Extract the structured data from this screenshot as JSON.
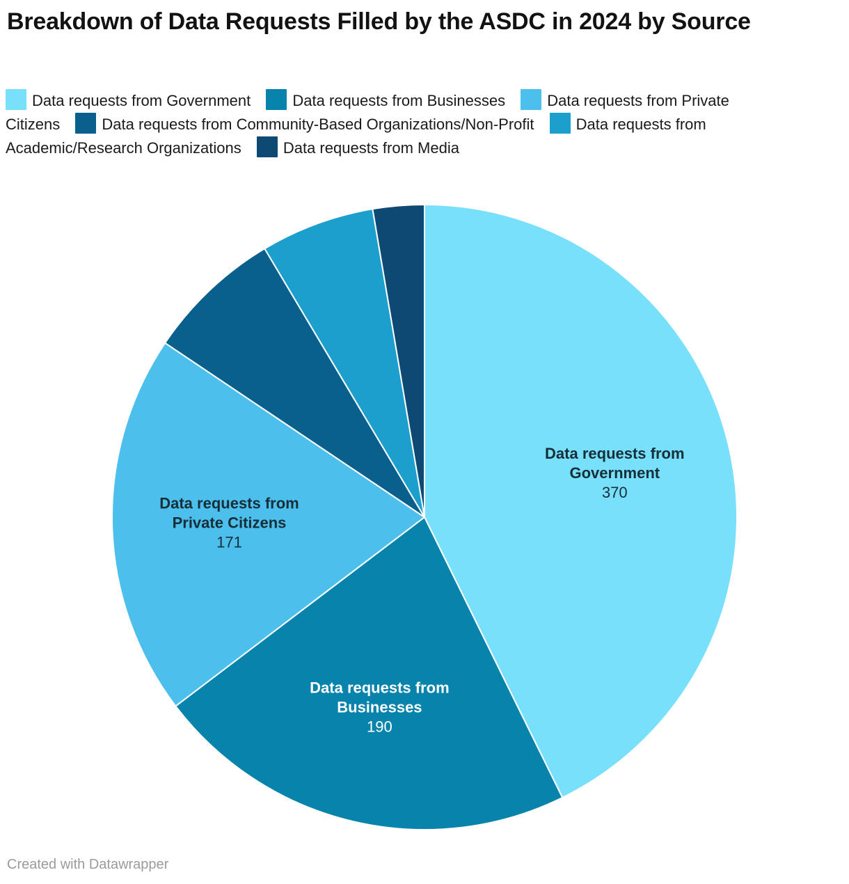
{
  "title": "Breakdown of Data Requests Filled by the ASDC in 2024 by Source",
  "footer": "Created with Datawrapper",
  "colors": {
    "background": "#ffffff",
    "title_text": "#121212",
    "legend_text": "#1a1a1a",
    "footer_text": "#9b9b9b",
    "slice_divider": "#ffffff"
  },
  "chart_data": {
    "type": "pie",
    "title": "Breakdown of Data Requests Filled by the ASDC in 2024 by Source",
    "legend_position": "top",
    "direction": "clockwise",
    "start_angle_deg": 0,
    "slices": [
      {
        "label": "Data requests from Government",
        "value": 370,
        "color": "#79E0FB",
        "show_label": true,
        "label_color": "#152e38",
        "value_estimated": false
      },
      {
        "label": "Data requests from Businesses",
        "value": 190,
        "color": "#0883AC",
        "show_label": true,
        "label_color": "#ffffff",
        "value_estimated": false
      },
      {
        "label": "Data requests from Private Citizens",
        "value": 171,
        "color": "#4DBFEC",
        "show_label": true,
        "label_color": "#152e38",
        "value_estimated": false
      },
      {
        "label": "Data requests from Community-Based Organizations/Non-Profit",
        "value": 61,
        "color": "#0A608C",
        "show_label": false,
        "label_color": "#ffffff",
        "value_estimated": true
      },
      {
        "label": "Data requests from Academic/Research Organizations",
        "value": 51,
        "color": "#1C9FCC",
        "show_label": false,
        "label_color": "#ffffff",
        "value_estimated": true
      },
      {
        "label": "Data requests from Media",
        "value": 23,
        "color": "#0D4973",
        "show_label": false,
        "label_color": "#ffffff",
        "value_estimated": true
      }
    ]
  }
}
